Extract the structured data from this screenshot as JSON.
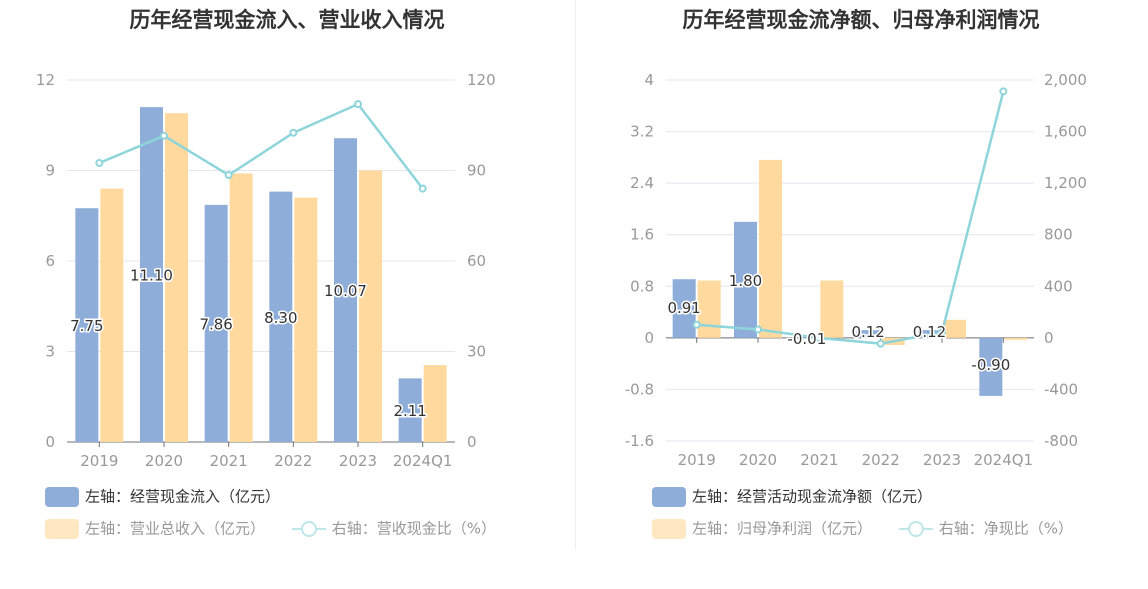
{
  "colors": {
    "bar1": "#8eadd9",
    "bar2": "#ffd99e",
    "line": "#8ed5db",
    "grid": "#e4e6ef",
    "axis_text": "#999999",
    "label_text": "#333333"
  },
  "charts": [
    {
      "title": "历年经营现金流入、营业收入情况",
      "legend": [
        {
          "label": "左轴：经营现金流入（亿元）",
          "type": "bar"
        },
        {
          "label": "左轴：营业总收入（亿元）",
          "type": "bar"
        },
        {
          "label": "右轴：营收现金比（%）",
          "type": "line"
        }
      ]
    },
    {
      "title": "历年经营现金流净额、归母净利润情况",
      "legend": [
        {
          "label": "左轴：经营活动现金流净额（亿元）",
          "type": "bar"
        },
        {
          "label": "左轴：归母净利润（亿元）",
          "type": "bar"
        },
        {
          "label": "右轴：净现比（%）",
          "type": "line"
        }
      ]
    }
  ],
  "chart_data": [
    {
      "type": "bar",
      "title": "历年经营现金流入、营业收入情况",
      "categories": [
        "2019",
        "2020",
        "2021",
        "2022",
        "2023",
        "2024Q1"
      ],
      "series": [
        {
          "name": "左轴：经营现金流入（亿元）",
          "axis": "left",
          "values": [
            7.75,
            11.1,
            7.86,
            8.3,
            10.07,
            2.11
          ],
          "labels": [
            "7.75",
            "11.10",
            "7.86",
            "8.30",
            "10.07",
            "2.11"
          ]
        },
        {
          "name": "左轴：营业总收入（亿元）",
          "axis": "left",
          "values": [
            8.4,
            10.9,
            8.9,
            8.1,
            9.0,
            2.55
          ]
        },
        {
          "name": "右轴：营收现金比（%）",
          "axis": "right",
          "type": "line",
          "values": [
            92.5,
            101.5,
            88.5,
            102.5,
            112,
            84
          ]
        }
      ],
      "left_axis": {
        "min": 0,
        "max": 12,
        "ticks": [
          "0",
          "3",
          "6",
          "9",
          "12"
        ]
      },
      "right_axis": {
        "min": 0,
        "max": 120,
        "ticks": [
          "0",
          "30",
          "60",
          "90",
          "120"
        ]
      },
      "grid": true,
      "legend_position": "bottom-left"
    },
    {
      "type": "bar",
      "title": "历年经营现金流净额、归母净利润情况",
      "categories": [
        "2019",
        "2020",
        "2021",
        "2022",
        "2023",
        "2024Q1"
      ],
      "series": [
        {
          "name": "左轴：经营活动现金流净额（亿元）",
          "axis": "left",
          "values": [
            0.91,
            1.8,
            -0.01,
            0.12,
            0.12,
            -0.9
          ],
          "labels": [
            "0.91",
            "1.80",
            "-0.01",
            "0.12",
            "0.12",
            "-0.90"
          ]
        },
        {
          "name": "左轴：归母净利润（亿元）",
          "axis": "left",
          "values": [
            0.89,
            2.76,
            0.89,
            -0.11,
            0.28,
            -0.03
          ]
        },
        {
          "name": "右轴：净现比（%）",
          "axis": "right",
          "type": "line",
          "values": [
            102,
            65,
            -1,
            -45,
            43,
            1912
          ]
        }
      ],
      "left_axis": {
        "min": -1.6,
        "max": 4,
        "ticks": [
          "-1.6",
          "-0.8",
          "0",
          "0.8",
          "1.6",
          "2.4",
          "3.2",
          "4"
        ]
      },
      "right_axis": {
        "min": -800,
        "max": 2000,
        "ticks": [
          "-800",
          "-400",
          "0",
          "400",
          "800",
          "1,200",
          "1,600",
          "2,000"
        ]
      },
      "grid": true,
      "legend_position": "bottom-left"
    }
  ]
}
